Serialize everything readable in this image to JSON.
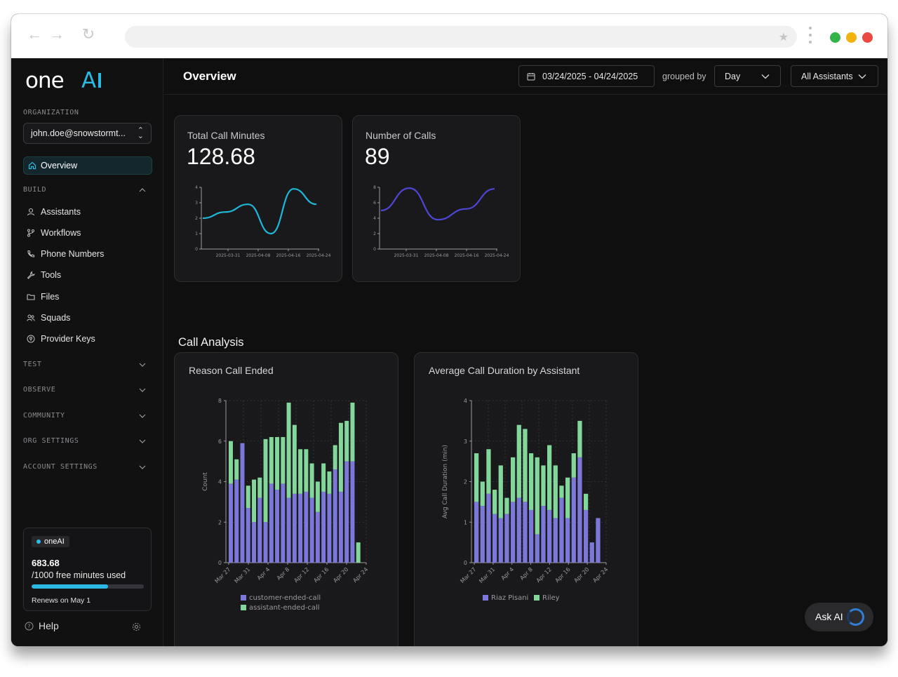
{
  "browser": {
    "icons": [
      "back-arrow-icon",
      "forward-arrow-icon",
      "reload-icon",
      "star-icon",
      "kebab-menu-icon"
    ],
    "traffic_lights": [
      "#35b34a",
      "#f2b20f",
      "#ea4a3f"
    ]
  },
  "sidebar": {
    "logo_text": "oneAI",
    "org_label": "ORGANIZATION",
    "org_value": "john.doe@snowstormt...",
    "active_item": "Overview",
    "build_label": "BUILD",
    "build_items": [
      "Assistants",
      "Workflows",
      "Phone Numbers",
      "Tools",
      "Files",
      "Squads",
      "Provider Keys"
    ],
    "groups": [
      "TEST",
      "OBSERVE",
      "COMMUNITY",
      "ORG SETTINGS",
      "ACCOUNT SETTINGS"
    ],
    "usage": {
      "badge": "oneAI",
      "minutes": "683.68",
      "quota_text": "/1000 free minutes used",
      "used_fraction": 0.684,
      "renew": "Renews on May 1"
    },
    "help": "Help"
  },
  "topbar": {
    "title": "Overview",
    "date_range": "03/24/2025 - 04/24/2025",
    "grouped_by_label": "grouped by",
    "group_value": "Day",
    "assistant_filter": "All Assistants"
  },
  "metrics": [
    {
      "label": "Total Call Minutes",
      "value": "128.68",
      "chart": {
        "type": "line",
        "color": "#1fb6d8",
        "yticks": [
          "0",
          "1",
          "2",
          "3",
          "4"
        ],
        "ylim": [
          0,
          4
        ],
        "xticks": [
          "2025-03-31",
          "2025-04-08",
          "2025-04-16",
          "2025-04-24"
        ],
        "values": [
          2.0,
          2.4,
          2.9,
          1.0,
          3.9,
          2.9
        ]
      }
    },
    {
      "label": "Number of Calls",
      "value": "89",
      "chart": {
        "type": "line",
        "color": "#4f46d6",
        "yticks": [
          "0",
          "2",
          "4",
          "6",
          "8"
        ],
        "ylim": [
          0,
          8
        ],
        "xticks": [
          "2025-03-31",
          "2025-04-08",
          "2025-04-16",
          "2025-04-24"
        ],
        "values": [
          5.0,
          7.9,
          3.8,
          5.2,
          7.8
        ]
      }
    }
  ],
  "analysis_title": "Call Analysis",
  "chart_data": [
    {
      "type": "bar",
      "stacked": true,
      "title": "Reason Call Ended",
      "ylabel": "Count",
      "xlabel": "",
      "ylim": [
        0,
        8
      ],
      "yticks": [
        "0",
        "2",
        "4",
        "6",
        "8"
      ],
      "xticks": [
        "Mar 27",
        "Mar 31",
        "Apr 4",
        "Apr 8",
        "Apr 12",
        "Apr 16",
        "Apr 20",
        "Apr 24"
      ],
      "grid": true,
      "legend": "bottom",
      "series": [
        {
          "name": "customer-ended-call",
          "color": "#7b78d9",
          "values": [
            3.9,
            4.1,
            5.9,
            2.7,
            2.0,
            3.2,
            2.0,
            3.9,
            3.6,
            3.9,
            3.2,
            3.4,
            3.4,
            3.5,
            3.2,
            2.5,
            3.5,
            3.4,
            4.6,
            3.5,
            5.0,
            5.0,
            0.0
          ]
        },
        {
          "name": "assistant-ended-call",
          "color": "#84d79b",
          "values": [
            2.1,
            1.0,
            0.0,
            1.1,
            2.1,
            1.0,
            4.1,
            2.3,
            2.6,
            2.3,
            4.7,
            3.4,
            2.2,
            2.1,
            1.7,
            1.5,
            1.4,
            1.1,
            1.2,
            3.4,
            2.0,
            2.9,
            1.0
          ]
        }
      ]
    },
    {
      "type": "bar",
      "stacked": true,
      "title": "Average Call Duration by Assistant",
      "ylabel": "Avg Call Duration (min)",
      "xlabel": "",
      "ylim": [
        0,
        4
      ],
      "yticks": [
        "0",
        "1",
        "2",
        "3",
        "4"
      ],
      "xticks": [
        "Mar 27",
        "Mar 31",
        "Apr 4",
        "Apr 8",
        "Apr 12",
        "Apr 16",
        "Apr 20",
        "Apr 24"
      ],
      "grid": true,
      "legend": "bottom",
      "series": [
        {
          "name": "Riaz Pisani",
          "color": "#7b78d9",
          "values": [
            1.5,
            1.4,
            1.7,
            1.2,
            1.1,
            1.2,
            1.5,
            1.6,
            1.5,
            1.3,
            0.7,
            1.4,
            1.3,
            1.1,
            1.6,
            1.1,
            2.1,
            2.6,
            1.3,
            0.5,
            1.1
          ]
        },
        {
          "name": "Riley",
          "color": "#84d79b",
          "values": [
            1.2,
            0.6,
            1.1,
            0.6,
            1.3,
            0.4,
            1.1,
            1.8,
            1.8,
            1.4,
            1.9,
            1.0,
            1.6,
            1.3,
            0.3,
            1.0,
            0.6,
            0.9,
            0.4,
            0.0,
            0.0
          ]
        }
      ]
    }
  ],
  "ask_ai": "Ask AI"
}
